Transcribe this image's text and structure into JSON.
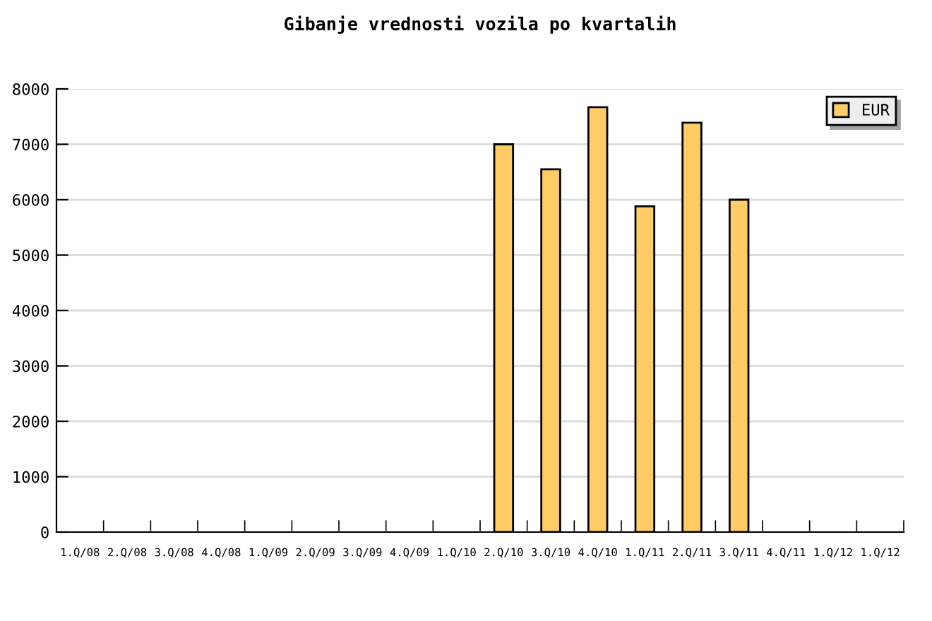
{
  "chart_data": {
    "type": "bar",
    "title": "Gibanje vrednosti vozila po kvartalih",
    "categories": [
      "1.Q/08",
      "2.Q/08",
      "3.Q/08",
      "4.Q/08",
      "1.Q/09",
      "2.Q/09",
      "3.Q/09",
      "4.Q/09",
      "1.Q/10",
      "2.Q/10",
      "3.Q/10",
      "4.Q/10",
      "1.Q/11",
      "2.Q/11",
      "3.Q/11",
      "4.Q/11",
      "1.Q/12",
      "1.Q/12"
    ],
    "series": [
      {
        "name": "EUR",
        "color": "#ffcc66",
        "values": [
          null,
          null,
          null,
          null,
          null,
          null,
          null,
          null,
          null,
          7000,
          6550,
          7670,
          5880,
          7390,
          6000,
          null,
          null,
          null
        ]
      }
    ],
    "ylim": [
      0,
      8000
    ],
    "yticks": [
      0,
      1000,
      2000,
      3000,
      4000,
      5000,
      6000,
      7000,
      8000
    ],
    "grid": "y",
    "legend": "top right"
  }
}
